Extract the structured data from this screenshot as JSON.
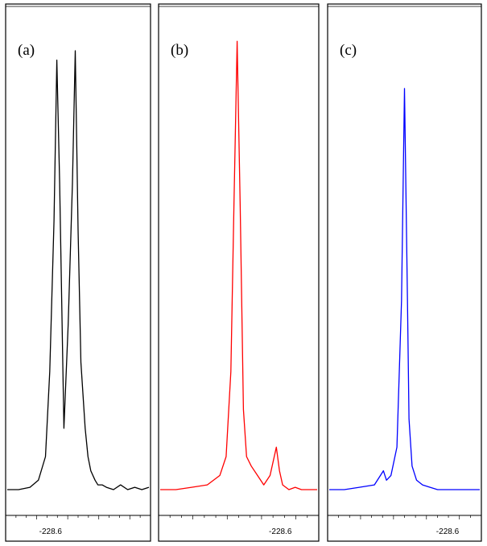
{
  "chart_data": [
    {
      "type": "line",
      "panel_label": "(a)",
      "color": "#000000",
      "x_tick_label": "-228.6",
      "series": [
        {
          "x": [
            0.0,
            0.08,
            0.16,
            0.22,
            0.27,
            0.3,
            0.33,
            0.35,
            0.37,
            0.4,
            0.43,
            0.46,
            0.48,
            0.5,
            0.52,
            0.55,
            0.57,
            0.59,
            0.62,
            0.64,
            0.67,
            0.7,
            0.75,
            0.8,
            0.85,
            0.9,
            0.95,
            1.0
          ],
          "y": [
            0.05,
            0.05,
            0.055,
            0.07,
            0.12,
            0.3,
            0.62,
            0.96,
            0.7,
            0.18,
            0.4,
            0.7,
            0.98,
            0.6,
            0.32,
            0.18,
            0.12,
            0.09,
            0.07,
            0.06,
            0.06,
            0.055,
            0.05,
            0.06,
            0.05,
            0.055,
            0.05,
            0.055
          ]
        }
      ]
    },
    {
      "type": "line",
      "panel_label": "(b)",
      "color": "#ff0000",
      "x_tick_label": "-228.6",
      "series": [
        {
          "x": [
            0.0,
            0.1,
            0.2,
            0.3,
            0.38,
            0.42,
            0.45,
            0.47,
            0.49,
            0.51,
            0.53,
            0.55,
            0.58,
            0.62,
            0.66,
            0.7,
            0.74,
            0.76,
            0.78,
            0.82,
            0.86,
            0.9,
            0.95,
            1.0
          ],
          "y": [
            0.05,
            0.05,
            0.055,
            0.06,
            0.08,
            0.12,
            0.3,
            0.65,
            1.0,
            0.65,
            0.22,
            0.12,
            0.1,
            0.08,
            0.06,
            0.08,
            0.14,
            0.09,
            0.06,
            0.05,
            0.055,
            0.05,
            0.05,
            0.05
          ]
        }
      ]
    },
    {
      "type": "line",
      "panel_label": "(c)",
      "color": "#0000ff",
      "x_tick_label": "-228.6",
      "series": [
        {
          "x": [
            0.0,
            0.1,
            0.2,
            0.3,
            0.36,
            0.38,
            0.41,
            0.45,
            0.48,
            0.5,
            0.52,
            0.53,
            0.55,
            0.58,
            0.62,
            0.67,
            0.72,
            0.8,
            0.9,
            1.0
          ],
          "y": [
            0.05,
            0.05,
            0.055,
            0.06,
            0.09,
            0.07,
            0.08,
            0.14,
            0.45,
            0.9,
            0.45,
            0.2,
            0.1,
            0.07,
            0.06,
            0.055,
            0.05,
            0.05,
            0.05,
            0.05
          ]
        }
      ]
    }
  ]
}
